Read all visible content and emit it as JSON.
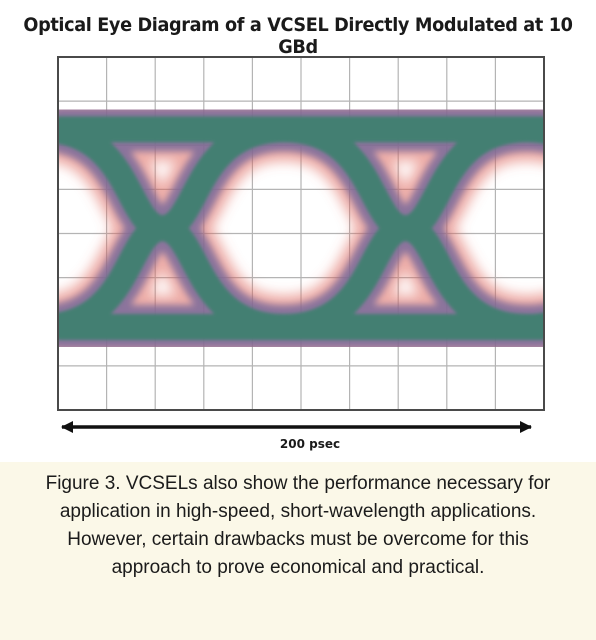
{
  "figure": {
    "title": "Optical Eye Diagram of a VCSEL Directly Modulated at 10 GBd",
    "caption": "Figure 3. VCSELs also show the performance necessary for application in high-speed, short-wavelength applications. However, certain drawbacks must be overcome for this approach to prove economical and practical."
  },
  "chart_data": {
    "type": "eye-diagram",
    "title": "Optical Eye Diagram of a VCSEL Directly Modulated at 10 GBd",
    "time_span_label": "200 psec",
    "time_span_ps": 200,
    "unit_interval_ps": 100,
    "symbol_rate": "10 GBd",
    "grid": {
      "on": true,
      "columns": 10,
      "rows": 8
    },
    "colors": {
      "plot_background": "#ffffff",
      "grid": "#b4b4b4",
      "frame": "#4a4a4a",
      "trace_core": "#3f8070",
      "trace_mid": "#7a6a9a",
      "trace_halo": "#e06a5e",
      "caption_background": "#fbf8e8"
    }
  }
}
